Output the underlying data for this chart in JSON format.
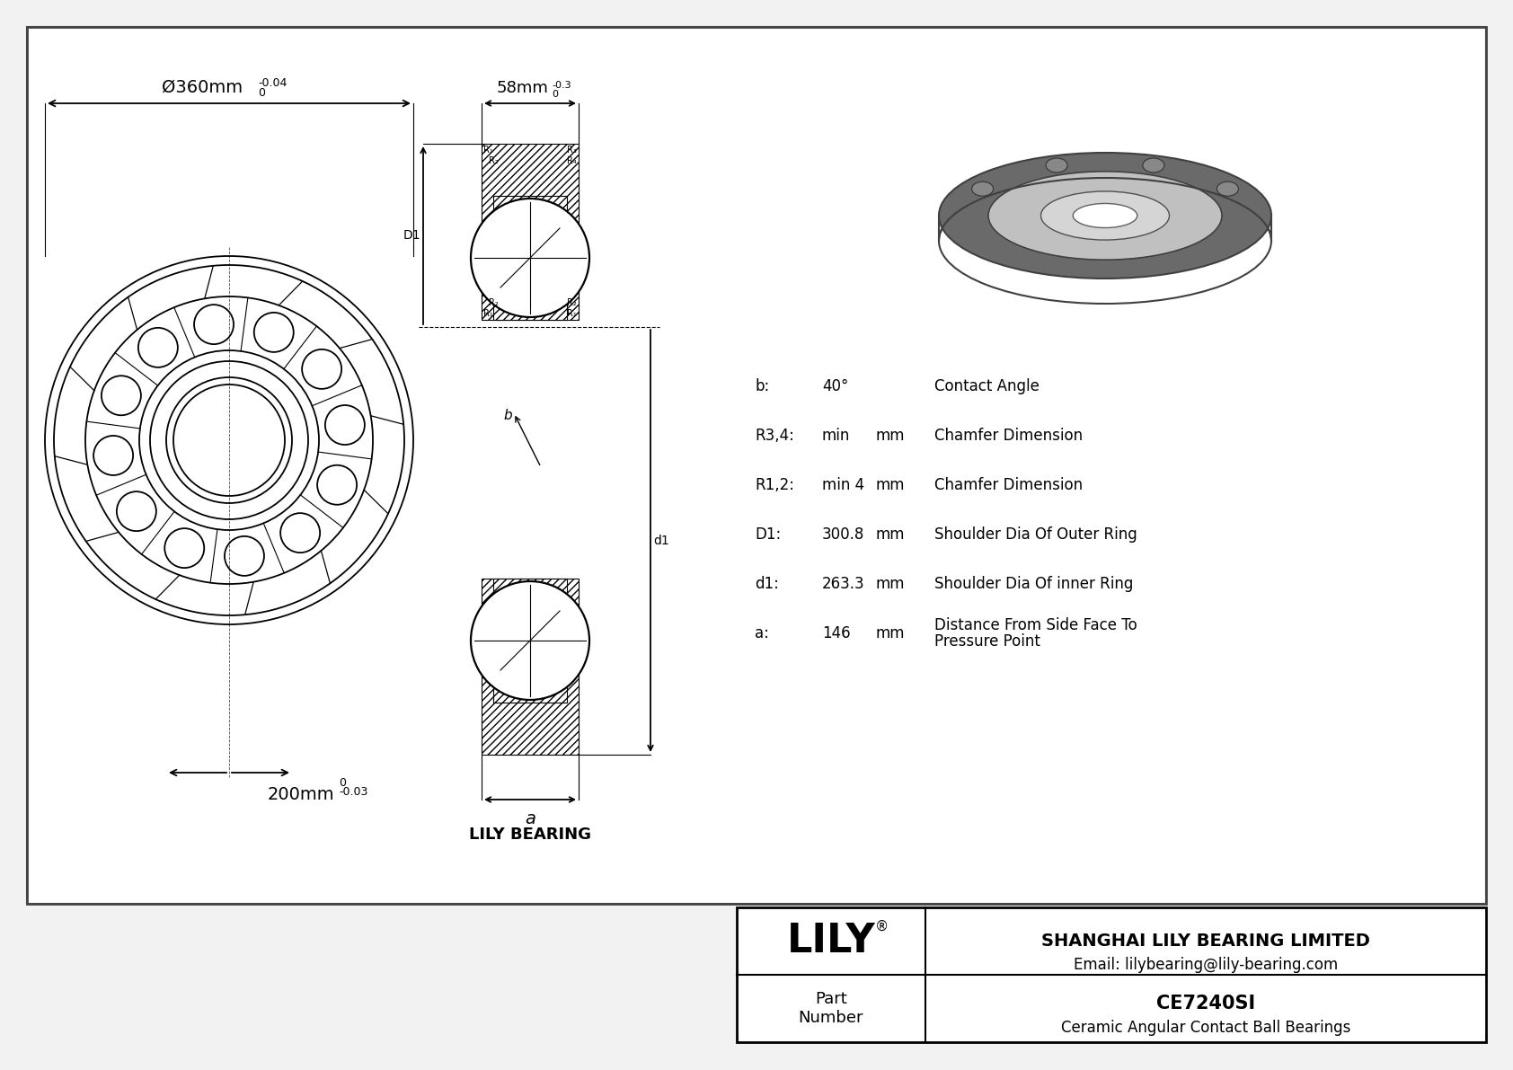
{
  "bg_color": "#ffffff",
  "outer_bg": "#f2f2f2",
  "line_color": "#000000",
  "part_number": "CE7240SI",
  "part_type": "Ceramic Angular Contact Ball Bearings",
  "company": "SHANGHAI LILY BEARING LIMITED",
  "email": "Email: lilybearing@lily-bearing.com",
  "lily_label": "LILY",
  "bearing_label": "LILY BEARING",
  "outer_dim_label": "Ø360mm",
  "outer_tol_upper": "0",
  "outer_tol_lower": "-0.04",
  "inner_dim_label": "200mm",
  "inner_tol_upper": "0",
  "inner_tol_lower": "-0.03",
  "width_dim_label": "58mm",
  "width_tol_upper": "0",
  "width_tol_lower": "-0.3",
  "specs": [
    {
      "symbol": "b:",
      "value": "40°",
      "unit": "",
      "description": "Contact Angle"
    },
    {
      "symbol": "R3,4:",
      "value": "min",
      "unit": "mm",
      "description": "Chamfer Dimension"
    },
    {
      "symbol": "R1,2:",
      "value": "min 4",
      "unit": "mm",
      "description": "Chamfer Dimension"
    },
    {
      "symbol": "D1:",
      "value": "300.8",
      "unit": "mm",
      "description": "Shoulder Dia Of Outer Ring"
    },
    {
      "symbol": "d1:",
      "value": "263.3",
      "unit": "mm",
      "description": "Shoulder Dia Of inner Ring"
    },
    {
      "symbol": "a:",
      "value": "146",
      "unit": "mm",
      "description": "Distance From Side Face To\nPressure Point"
    }
  ]
}
